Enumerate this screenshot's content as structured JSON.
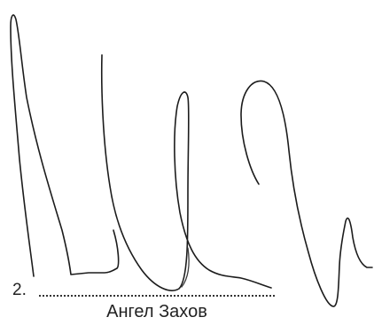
{
  "signature_block": {
    "line_number": "2.",
    "signer_name": "Ангел Захов"
  }
}
